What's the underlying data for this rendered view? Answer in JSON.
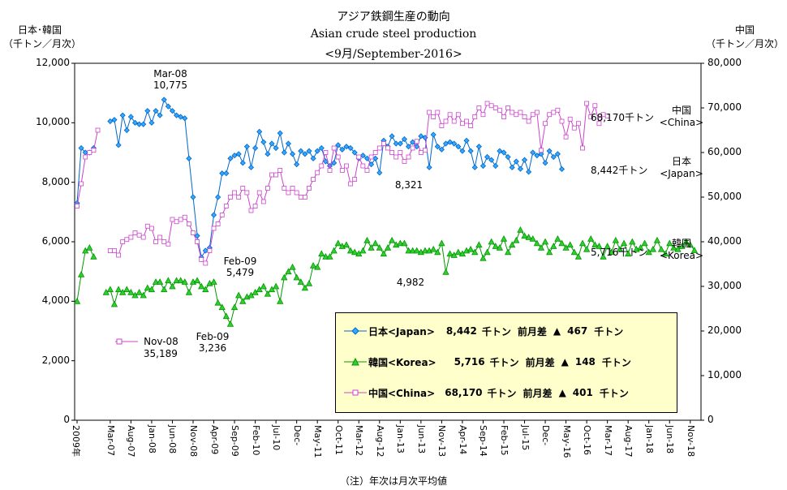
{
  "titles": {
    "line1": "アジア鉄鋼生産の動向",
    "line2": "Asian crude steel production",
    "line3": "<9月/September-2016>"
  },
  "axis_headers": {
    "left_line1": "日本･韓国",
    "left_line2": "（千トン／月次）",
    "right_line1": "中国",
    "right_line2": "（千トン／月次）"
  },
  "footnote": "（注）年次は月次平均値",
  "colors": {
    "japan": "#0066cc",
    "korea": "#009900",
    "china": "#cc44cc",
    "legend_bg": "#ffffcc"
  },
  "chart_data": {
    "type": "line",
    "left_axis": {
      "ylim": [
        0,
        12000
      ],
      "ticks": [
        "0",
        "2,000",
        "4,000",
        "6,000",
        "8,000",
        "10,000",
        "12,000"
      ]
    },
    "right_axis": {
      "ylim": [
        0,
        80000
      ],
      "ticks": [
        "0",
        "10,000",
        "20,000",
        "30,000",
        "40,000",
        "50,000",
        "60,000",
        "70,000",
        "80,000"
      ]
    },
    "x_tick_labels": [
      "2009年",
      "Mar-07",
      "Aug-07",
      "Jan-08",
      "Jun-08",
      "Nov-08",
      "Apr-09",
      "Sep-09",
      "Feb-10",
      "Jul-10",
      "Dec-",
      "May-11",
      "Oct-11",
      "Mar-12",
      "Aug-12",
      "Jan-13",
      "Jun-13",
      "Nov-13",
      "Apr-14",
      "Sep-14",
      "Feb-15",
      "Jul-15",
      "Dec-",
      "May-16",
      "Oct-16",
      "Mar-17",
      "Aug-17",
      "Jan-18",
      "Jun-18",
      "Nov-18"
    ],
    "annotations": [
      {
        "id": "mar08",
        "line1": "Mar-08",
        "line2": "10,775"
      },
      {
        "id": "feb09j",
        "line1": "Feb-09",
        "line2": "5,479"
      },
      {
        "id": "feb09k",
        "line1": "Feb-09",
        "line2": "3,236"
      },
      {
        "id": "nov08",
        "line1": "Nov-08",
        "line2": "35,189"
      },
      {
        "id": "jan13j",
        "line1": "8,321"
      },
      {
        "id": "jan13k",
        "line1": "4,982"
      }
    ],
    "end_labels": [
      {
        "value": "68,170千トン",
        "name1": "中国",
        "name2": "<China>"
      },
      {
        "value": "8,442千トン",
        "name1": "日本",
        "name2": "<Japan>"
      },
      {
        "value": "5,716千トン",
        "name1": "韓国",
        "name2": "<Korea>"
      }
    ],
    "series": [
      {
        "name": "日本<Japan>",
        "axis": "left",
        "annual": [
          7300,
          9150,
          9000,
          9000,
          9150
        ],
        "monthly": [
          10050,
          10100,
          9250,
          10250,
          9750,
          10200,
          10000,
          9950,
          9950,
          10400,
          10000,
          10400,
          10250,
          10775,
          10550,
          10400,
          10250,
          10200,
          10150,
          8800,
          7500,
          6200,
          5479,
          5700,
          5800,
          6900,
          7500,
          8300,
          8300,
          8800,
          8900,
          8950,
          8650,
          9200,
          8500,
          9150,
          9700,
          9350,
          8950,
          9300,
          9150,
          9650,
          9000,
          9300,
          8950,
          8600,
          9050,
          8950,
          9050,
          8800,
          9050,
          9150,
          8700,
          8550,
          8650,
          9250,
          9100,
          9200,
          9150,
          9000,
          8800,
          8900,
          8800,
          8600,
          8800,
          8321,
          9400,
          9200,
          9550,
          9300,
          9300,
          9450,
          9200,
          9350,
          9200,
          9550,
          9500,
          8500,
          9600,
          9200,
          9100,
          9300,
          9350,
          9300,
          9200,
          9050,
          9400,
          9050,
          8500,
          9200,
          8550,
          8850,
          8750,
          8550,
          9050,
          9000,
          8850,
          8500,
          8700,
          8450,
          8750,
          8350,
          9000,
          8900,
          8950,
          8650,
          9050,
          8850,
          8950,
          8442
        ],
        "summary": {
          "label": "日本<Japan>",
          "value": "8,442",
          "unit": "千トン",
          "diff_label": "前月差",
          "diff_symbol": "▲",
          "diff_value": "467",
          "diff_unit": "千トン"
        }
      },
      {
        "name": "韓国<Korea>",
        "axis": "left",
        "annual": [
          4000,
          4900,
          5700,
          5800,
          5500
        ],
        "monthly": [
          4300,
          4400,
          3900,
          4400,
          4300,
          4400,
          4300,
          4200,
          4300,
          4200,
          4450,
          4400,
          4650,
          4650,
          4400,
          4700,
          4500,
          4700,
          4700,
          4650,
          4300,
          4650,
          4700,
          4500,
          4400,
          4600,
          4650,
          3950,
          3800,
          3500,
          3236,
          3800,
          4200,
          4000,
          4150,
          4200,
          4300,
          4400,
          4500,
          4250,
          4400,
          4500,
          4000,
          4800,
          5000,
          5150,
          4800,
          4650,
          4450,
          4600,
          5200,
          5150,
          5600,
          5500,
          5500,
          5700,
          5950,
          5850,
          5900,
          5700,
          5650,
          5600,
          5700,
          6050,
          5800,
          5950,
          5800,
          5600,
          5800,
          6050,
          5900,
          5950,
          5950,
          5700,
          5700,
          5700,
          5650,
          5700,
          5700,
          5750,
          5650,
          5950,
          4982,
          5600,
          5550,
          5650,
          5600,
          5700,
          5750,
          5650,
          5900,
          5450,
          5650,
          6000,
          5850,
          5800,
          6100,
          5650,
          5900,
          6050,
          6400,
          6200,
          6150,
          6100,
          5950,
          5800,
          6000,
          5650,
          5850,
          6100,
          5950,
          5800,
          5900,
          5650,
          5500,
          5950,
          5750,
          6100,
          5900,
          5850,
          5500,
          5850,
          5650,
          6050,
          5750,
          5950,
          5600,
          6000,
          5750,
          5800,
          5950,
          5650,
          5750,
          6050,
          5750,
          5600,
          5950,
          5800,
          5750,
          5850,
          6000,
          5900,
          5716
        ],
        "summary": {
          "label": "韓国<Korea>",
          "value": "5,716",
          "unit": "千トン",
          "diff_label": "前月差",
          "diff_symbol": "▲",
          "diff_value": "148",
          "diff_unit": "千トン"
        }
      },
      {
        "name": "中国<China>",
        "axis": "right",
        "annual": [
          48000,
          53000,
          59000,
          60000,
          60500,
          65000
        ],
        "monthly": [
          38000,
          38000,
          37000,
          40000,
          40500,
          41000,
          42000,
          41500,
          41000,
          43500,
          43000,
          40000,
          41000,
          40000,
          39500,
          45000,
          44500,
          45000,
          45500,
          44000,
          42000,
          40000,
          36000,
          35189,
          38000,
          43000,
          44000,
          46000,
          48000,
          50000,
          51000,
          50000,
          52000,
          51000,
          47000,
          48000,
          51000,
          49000,
          52000,
          55000,
          55000,
          56000,
          52000,
          51000,
          52000,
          51000,
          50000,
          50000,
          52000,
          54000,
          55500,
          57000,
          60000,
          56000,
          61000,
          59000,
          56000,
          57000,
          53000,
          54000,
          59000,
          57000,
          56000,
          59000,
          60000,
          61000,
          62000,
          61000,
          60000,
          59000,
          60000,
          58000,
          59000,
          61000,
          62500,
          60000,
          60500,
          69000,
          68000,
          69000,
          66000,
          67000,
          68500,
          67000,
          68500,
          66500,
          67000,
          66000,
          68000,
          70000,
          68500,
          71000,
          70500,
          70000,
          69500,
          68000,
          70000,
          69000,
          68500,
          69000,
          68000,
          67000,
          68500,
          69000,
          60500,
          66500,
          68500,
          69000,
          69500,
          67000,
          63500,
          67500,
          65500,
          66500,
          61000,
          71000,
          68000,
          70500,
          66500,
          68500,
          68170
        ],
        "summary": {
          "label": "中国<China>",
          "value": "68,170",
          "unit": "千トン",
          "diff_label": "前月差",
          "diff_symbol": "▲",
          "diff_value": "401",
          "diff_unit": "千トン"
        }
      }
    ]
  }
}
